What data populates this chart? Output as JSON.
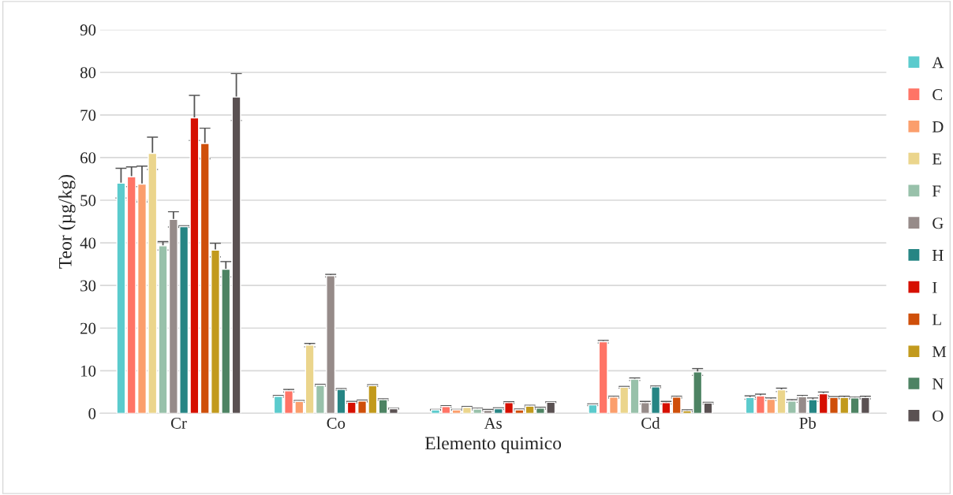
{
  "chart_data": {
    "type": "bar",
    "xlabel": "Elemento quimico",
    "ylabel": "Teor (µg/kg)",
    "categories": [
      "Cr",
      "Co",
      "As",
      "Cd",
      "Pb"
    ],
    "ylim": [
      0,
      90
    ],
    "yticks": [
      0,
      10,
      20,
      30,
      40,
      50,
      60,
      70,
      80,
      90
    ],
    "grid": "y",
    "legend": "right",
    "series": [
      {
        "name": "A",
        "color": "#5bcbcd",
        "values": [
          54,
          4.0,
          0.8,
          2.0,
          3.7
        ],
        "errors": [
          3.5,
          0.2,
          0.1,
          0.2,
          0.4
        ]
      },
      {
        "name": "C",
        "color": "#ff7466",
        "values": [
          55.5,
          5.3,
          1.6,
          16.8,
          4.1
        ],
        "errors": [
          2.3,
          0.3,
          0.2,
          0.3,
          0.4
        ]
      },
      {
        "name": "D",
        "color": "#fb9e6c",
        "values": [
          53.8,
          2.8,
          0.8,
          3.8,
          3.3
        ],
        "errors": [
          4.2,
          0.2,
          0.1,
          0.2,
          0.3
        ]
      },
      {
        "name": "E",
        "color": "#ebd58c",
        "values": [
          61,
          16.0,
          1.4,
          6.1,
          5.5
        ],
        "errors": [
          3.8,
          0.4,
          0.2,
          0.2,
          0.4
        ]
      },
      {
        "name": "F",
        "color": "#98c1aa",
        "values": [
          39.3,
          6.6,
          1.0,
          8.0,
          2.9
        ],
        "errors": [
          1.0,
          0.2,
          0.2,
          0.3,
          0.3
        ]
      },
      {
        "name": "G",
        "color": "#968b89",
        "values": [
          45.5,
          32.3,
          0.7,
          2.5,
          3.9
        ],
        "errors": [
          1.8,
          0.3,
          0.2,
          0.3,
          0.3
        ]
      },
      {
        "name": "H",
        "color": "#268584",
        "values": [
          43.8,
          5.6,
          1.1,
          6.2,
          3.2
        ],
        "errors": [
          0.2,
          0.2,
          0.2,
          0.2,
          0.4
        ]
      },
      {
        "name": "I",
        "color": "#d60f00",
        "values": [
          69.3,
          2.6,
          2.5,
          2.5,
          4.6
        ],
        "errors": [
          5.3,
          0.2,
          0.2,
          0.3,
          0.4
        ]
      },
      {
        "name": "L",
        "color": "#cf4f0a",
        "values": [
          63.3,
          2.9,
          0.8,
          3.8,
          3.7
        ],
        "errors": [
          3.6,
          0.2,
          0.2,
          0.2,
          0.2
        ]
      },
      {
        "name": "M",
        "color": "#c29a1d",
        "values": [
          38.3,
          6.5,
          1.7,
          0.6,
          3.7
        ],
        "errors": [
          1.6,
          0.2,
          0.2,
          0.2,
          0.3
        ]
      },
      {
        "name": "N",
        "color": "#4d8363",
        "values": [
          33.8,
          3.2,
          1.2,
          9.7,
          3.6
        ],
        "errors": [
          1.8,
          0.2,
          0.2,
          0.8,
          0.2
        ]
      },
      {
        "name": "O",
        "color": "#5a5152",
        "values": [
          74.2,
          1.1,
          2.6,
          2.4,
          3.7
        ],
        "errors": [
          5.5,
          0.1,
          0.1,
          0.2,
          0.3
        ]
      }
    ]
  }
}
